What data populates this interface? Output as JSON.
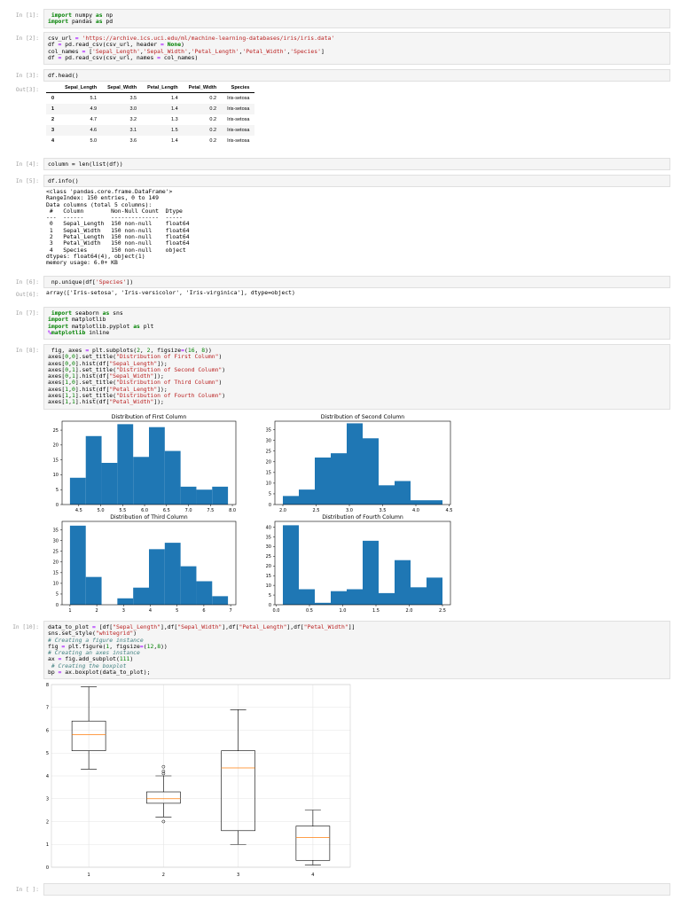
{
  "cells": {
    "c1": {
      "prompt": "In [1]:"
    },
    "c2": {
      "prompt": "In [2]:"
    },
    "c3": {
      "prompt": "In [3]:",
      "code": "df.head()",
      "out_prompt": "Out[3]:"
    },
    "c4": {
      "prompt": "In [4]:",
      "code": "column = len(list(df))"
    },
    "c5": {
      "prompt": "In [5]:",
      "code": "df.info()"
    },
    "c6": {
      "prompt": "In [6]:",
      "out_prompt": "Out[6]:",
      "output": "array(['Iris-setosa', 'Iris-versicolor', 'Iris-virginica'], dtype=object)"
    },
    "c7": {
      "prompt": "In [7]:"
    },
    "c8": {
      "prompt": "In [8]:"
    },
    "c10": {
      "prompt": "In [10]:"
    },
    "c11": {
      "prompt": "In [ ]:"
    }
  },
  "dataframe": {
    "columns": [
      "",
      "Sepal_Length",
      "Sepal_Width",
      "Petal_Length",
      "Petal_Width",
      "Species"
    ],
    "rows": [
      [
        "0",
        "5.1",
        "3.5",
        "1.4",
        "0.2",
        "Iris-setosa"
      ],
      [
        "1",
        "4.9",
        "3.0",
        "1.4",
        "0.2",
        "Iris-setosa"
      ],
      [
        "2",
        "4.7",
        "3.2",
        "1.3",
        "0.2",
        "Iris-setosa"
      ],
      [
        "3",
        "4.6",
        "3.1",
        "1.5",
        "0.2",
        "Iris-setosa"
      ],
      [
        "4",
        "5.0",
        "3.6",
        "1.4",
        "0.2",
        "Iris-setosa"
      ]
    ]
  },
  "info_output": "<class 'pandas.core.frame.DataFrame'>\nRangeIndex: 150 entries, 0 to 149\nData columns (total 5 columns):\n #   Column        Non-Null Count  Dtype  \n---  ------        --------------  -----  \n 0   Sepal_Length  150 non-null    float64\n 1   Sepal_Width   150 non-null    float64\n 2   Petal_Length  150 non-null    float64\n 3   Petal_Width   150 non-null    float64\n 4   Species       150 non-null    object \ndtypes: float64(4), object(1)\nmemory usage: 6.0+ KB",
  "colors": {
    "bar": "#1f77b4",
    "median": "#ff7f0e"
  },
  "chart_data": [
    {
      "type": "bar",
      "title": "Distribution of First Column",
      "ylim": [
        0,
        28
      ],
      "bin_edges": [
        4.3,
        4.66,
        5.02,
        5.38,
        5.74,
        6.1,
        6.46,
        6.82,
        7.18,
        7.54,
        7.9
      ],
      "values": [
        9,
        23,
        14,
        27,
        16,
        26,
        18,
        6,
        5,
        6
      ],
      "xticks": [
        "4.5",
        "5.0",
        "5.5",
        "6.0",
        "6.5",
        "7.0",
        "7.5",
        "8.0"
      ],
      "yticks": [
        "0",
        "5",
        "10",
        "15",
        "20",
        "25"
      ]
    },
    {
      "type": "bar",
      "title": "Distribution of Second Column",
      "ylim": [
        0,
        39
      ],
      "bin_edges": [
        2.0,
        2.24,
        2.48,
        2.72,
        2.96,
        3.2,
        3.44,
        3.68,
        3.92,
        4.16,
        4.4
      ],
      "values": [
        4,
        7,
        22,
        24,
        38,
        31,
        9,
        11,
        2,
        2
      ],
      "xticks": [
        "2.0",
        "2.5",
        "3.0",
        "3.5",
        "4.0",
        "4.5"
      ],
      "yticks": [
        "0",
        "5",
        "10",
        "15",
        "20",
        "25",
        "30",
        "35"
      ]
    },
    {
      "type": "bar",
      "title": "Distribution of Third Column",
      "ylim": [
        0,
        39
      ],
      "bin_edges": [
        1.0,
        1.59,
        2.18,
        2.77,
        3.36,
        3.95,
        4.54,
        5.13,
        5.72,
        6.31,
        6.9
      ],
      "values": [
        37,
        13,
        0,
        3,
        8,
        26,
        29,
        18,
        11,
        4
      ],
      "xticks": [
        "1",
        "2",
        "3",
        "4",
        "5",
        "6",
        "7"
      ],
      "yticks": [
        "0",
        "5",
        "10",
        "15",
        "20",
        "25",
        "30",
        "35"
      ]
    },
    {
      "type": "bar",
      "title": "Distribution of Fourth Column",
      "ylim": [
        0,
        43
      ],
      "bin_edges": [
        0.1,
        0.34,
        0.58,
        0.82,
        1.06,
        1.3,
        1.54,
        1.78,
        2.02,
        2.26,
        2.5
      ],
      "values": [
        41,
        8,
        1,
        7,
        8,
        33,
        6,
        23,
        9,
        14
      ],
      "xticks": [
        "0.0",
        "0.5",
        "1.0",
        "1.5",
        "2.0",
        "2.5"
      ],
      "yticks": [
        "0",
        "5",
        "10",
        "15",
        "20",
        "25",
        "30",
        "35",
        "40"
      ]
    },
    {
      "type": "box",
      "ylim": [
        0,
        8
      ],
      "categories": [
        "1",
        "2",
        "3",
        "4"
      ],
      "yticks": [
        "0",
        "1",
        "2",
        "3",
        "4",
        "5",
        "6",
        "7",
        "8"
      ],
      "series": [
        {
          "min": 4.3,
          "q1": 5.1,
          "median": 5.8,
          "q3": 6.4,
          "max": 7.9,
          "outliers": []
        },
        {
          "min": 2.2,
          "q1": 2.8,
          "median": 3.0,
          "q3": 3.3,
          "max": 4.0,
          "outliers": [
            4.4,
            4.1,
            4.2,
            2.0
          ]
        },
        {
          "min": 1.0,
          "q1": 1.6,
          "median": 4.35,
          "q3": 5.1,
          "max": 6.9,
          "outliers": []
        },
        {
          "min": 0.1,
          "q1": 0.3,
          "median": 1.3,
          "q3": 1.8,
          "max": 2.5,
          "outliers": []
        }
      ]
    }
  ]
}
